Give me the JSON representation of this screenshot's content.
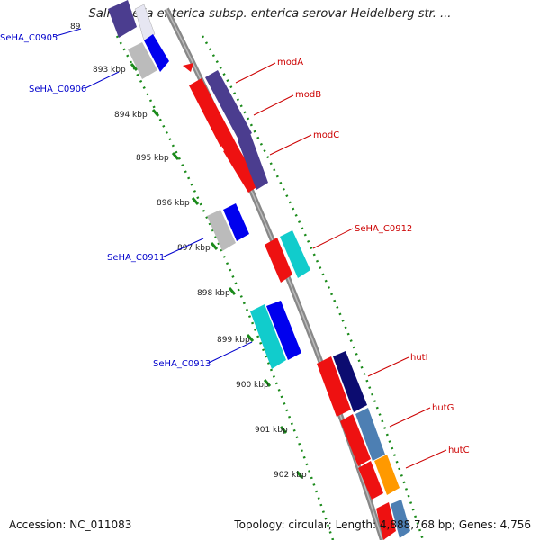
{
  "title": "Salmonella enterica subsp. enterica serovar Heidelberg str. ...",
  "footer": {
    "accession": "Accession: NC_011083",
    "summary": "Topology: circular; Length: 4,888,768 bp; Genes: 4,756"
  },
  "ticks": [
    "893 kbp",
    "894 kbp",
    "895 kbp",
    "896 kbp",
    "897 kbp",
    "898 kbp",
    "899 kbp",
    "900 kbp",
    "901 kbp",
    "902 kbp"
  ],
  "top_tick_fragment": "89",
  "genes_left": [
    "SeHA_C0905",
    "SeHA_C0906",
    "SeHA_C0911",
    "SeHA_C0913"
  ],
  "genes_right": [
    "modA",
    "modB",
    "modC",
    "SeHA_C0912",
    "hutI",
    "hutG",
    "hutC"
  ],
  "colors": {
    "backbone": "#888888",
    "gc_dots": "#1a8a1a",
    "right_label": "#cc0000",
    "left_label": "#0000cc",
    "red": "#ee1111",
    "blue": "#0000ee",
    "gray": "#bbbbbb",
    "cyan": "#11cccc",
    "purple": "#4b3d8f",
    "navy": "#0c0c70",
    "steel": "#4d7fb3",
    "orange": "#ff9900"
  }
}
